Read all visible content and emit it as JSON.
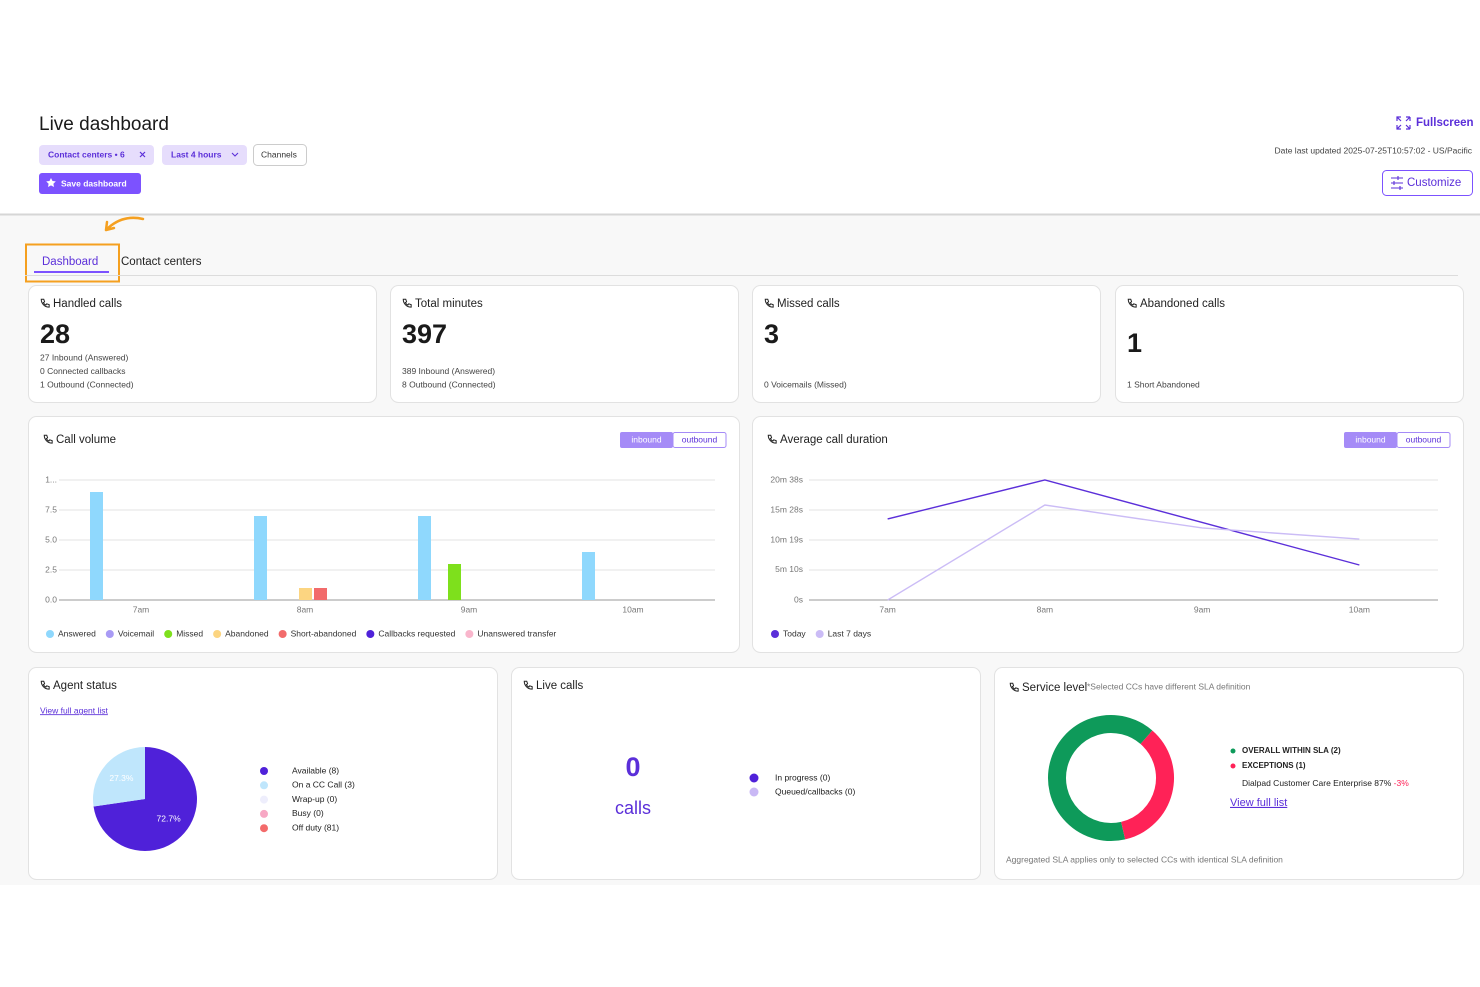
{
  "header": {
    "title": "Live dashboard",
    "filters": [
      "Contact centers • 6",
      "Last 4 hours",
      "Channels"
    ],
    "save_button": "Save dashboard",
    "fullscreen": "Fullscreen",
    "last_updated": "Date last updated 2025-07-25T10:57:02 - US/Pacific",
    "customize": "Customize"
  },
  "tabs": [
    "Dashboard",
    "Contact centers"
  ],
  "kpis": [
    {
      "title": "Handled calls",
      "value": 28,
      "details": [
        "27 Inbound (Answered)",
        "0 Connected callbacks",
        "1 Outbound (Connected)"
      ]
    },
    {
      "title": "Total minutes",
      "value": 397,
      "details": [
        "389 Inbound (Answered)",
        "8 Outbound (Connected)"
      ]
    },
    {
      "title": "Missed calls",
      "value": 3,
      "details": [
        "0 Voicemails (Missed)"
      ]
    },
    {
      "title": "Abandoned calls",
      "value": 1,
      "details": [
        "1 Short Abandoned"
      ]
    }
  ],
  "call_volume": {
    "type": "bar",
    "title": "Call volume",
    "toggle": [
      "inbound",
      "outbound"
    ],
    "categories": [
      "7am",
      "8am",
      "9am",
      "10am"
    ],
    "ylim": [
      0,
      10
    ],
    "yticks": [
      {
        "value": 0,
        "label": "0.0"
      },
      2.5,
      {
        "value": 5,
        "label": "5.0"
      },
      7.5,
      {
        "value": 10,
        "label": "1..."
      }
    ],
    "grid": true,
    "series": [
      {
        "name": "Answered",
        "color": "#8fd8fd",
        "values": [
          9,
          7,
          7,
          4
        ]
      },
      {
        "name": "Voicemail",
        "color": "#a99bf5",
        "values": [
          0,
          0,
          0,
          0
        ]
      },
      {
        "name": "Missed",
        "color": "#7ee01c",
        "values": [
          0,
          0,
          3,
          0
        ]
      },
      {
        "name": "Abandoned",
        "color": "#fcd581",
        "values": [
          0,
          1,
          0,
          0
        ]
      },
      {
        "name": "Short-abandoned",
        "color": "#f26b6b",
        "values": [
          0,
          1,
          0,
          0
        ]
      },
      {
        "name": "Callbacks requested",
        "color": "#4f21d9",
        "values": [
          0,
          0,
          0,
          0
        ]
      },
      {
        "name": "Unanswered transfer",
        "color": "#f9b6cc",
        "values": [
          0,
          0,
          0,
          0
        ]
      }
    ]
  },
  "avg_duration": {
    "type": "line",
    "title": "Average call duration",
    "toggle": [
      "inbound",
      "outbound"
    ],
    "categories": [
      "7am",
      "8am",
      "9am",
      "10am"
    ],
    "ylim": [
      0,
      1238
    ],
    "yticks": [
      {
        "value": 0,
        "label": "0s"
      },
      {
        "value": 310,
        "label": "5m 10s"
      },
      {
        "value": 619,
        "label": "10m 19s"
      },
      {
        "value": 928,
        "label": "15m 28s"
      },
      {
        "value": 1238,
        "label": "20m 38s"
      }
    ],
    "grid": true,
    "series": [
      {
        "name": "Today",
        "color": "#5b2fd9",
        "values": [
          836,
          1238,
          800,
          361
        ]
      },
      {
        "name": "Last 7 days",
        "color": "#cbbcf6",
        "values": [
          0,
          980,
          743,
          629
        ]
      }
    ]
  },
  "agent_status": {
    "type": "pie",
    "title": "Agent status",
    "link": "View full agent list",
    "values": [
      72.7,
      27.3
    ],
    "value_labels": [
      "72.7%",
      "27.3%"
    ],
    "colors": [
      "#4f21d9",
      "#bfe6fc"
    ],
    "legend": [
      "Available (8)",
      "On a CC Call (3)",
      "Wrap-up (0)",
      "Busy (0)",
      "Off duty (81)"
    ],
    "legend_colors": [
      "#4f21d9",
      "#bfe6fc",
      "#eeeefc",
      "#f7a8c4",
      "#f36b6b"
    ]
  },
  "live_calls": {
    "title": "Live calls",
    "count": 0,
    "unit": "calls",
    "legend": [
      "In progress (0)",
      "Queued/callbacks (0)"
    ],
    "legend_colors": [
      "#4f21d9",
      "#c9b8f5"
    ]
  },
  "service_level": {
    "type": "donut",
    "title": "Service level",
    "note": "*Selected CCs have different SLA definition",
    "values": [
      65,
      35
    ],
    "colors": [
      "#0e9a5a",
      "#ff2257"
    ],
    "legend": [
      "OVERALL WITHIN SLA (2)",
      "EXCEPTIONS (1)"
    ],
    "detail": "Dialpad Customer Care Enterprise 87%",
    "delta": "-3%",
    "link": "View full list",
    "footnote": "Aggregated SLA applies only to selected CCs with identical SLA definition"
  }
}
